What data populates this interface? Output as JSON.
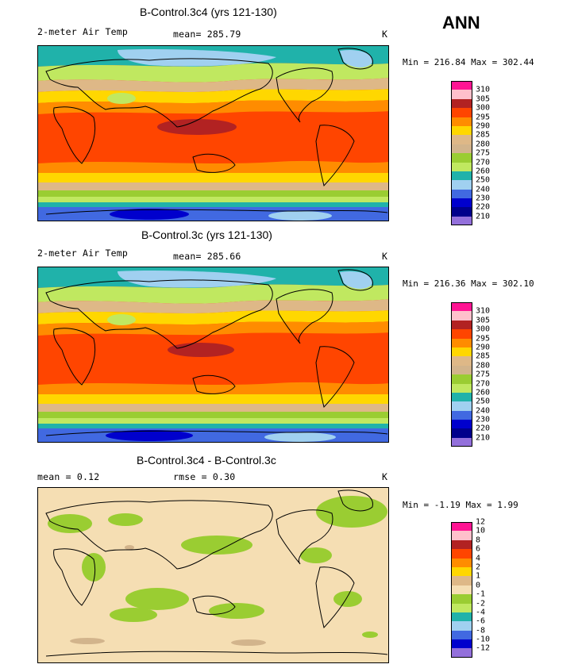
{
  "season": "ANN",
  "panels": [
    {
      "title": "B-Control.3c4 (yrs 121-130)",
      "variable": "2-meter Air Temp",
      "mean_label": "mean= 285.79",
      "units": "K",
      "minmax": "Min = 216.84 Max = 302.44",
      "legend_labels": [
        "310",
        "305",
        "300",
        "295",
        "290",
        "285",
        "280",
        "275",
        "270",
        "260",
        "250",
        "240",
        "230",
        "220",
        "210"
      ]
    },
    {
      "title": "B-Control.3c (yrs 121-130)",
      "variable": "2-meter Air Temp",
      "mean_label": "mean= 285.66",
      "units": "K",
      "minmax": "Min = 216.36 Max = 302.10",
      "legend_labels": [
        "310",
        "305",
        "300",
        "295",
        "290",
        "285",
        "280",
        "275",
        "270",
        "260",
        "250",
        "240",
        "230",
        "220",
        "210"
      ]
    },
    {
      "title": "B-Control.3c4 - B-Control.3c",
      "variable": "mean =    0.12",
      "mean_label": "rmse =    0.30",
      "units": "K",
      "minmax": "Min =  -1.19 Max =   1.99",
      "legend_labels": [
        "12",
        "10",
        "8",
        "6",
        "4",
        "2",
        "1",
        "0",
        "-1",
        "-2",
        "-4",
        "-6",
        "-8",
        "-10",
        "-12"
      ]
    }
  ],
  "colors": {
    "scale": [
      "#ff1493",
      "#ffc0cb",
      "#b22222",
      "#ff4500",
      "#ff8c00",
      "#ffd700",
      "#deb887",
      "#9acd32",
      "#c0e860",
      "#20b2aa",
      "#a0d0f0",
      "#4169e1",
      "#0000cd",
      "#9370db"
    ],
    "diff_bg": "#f5deb3",
    "diff_neg": "#9acd32"
  }
}
